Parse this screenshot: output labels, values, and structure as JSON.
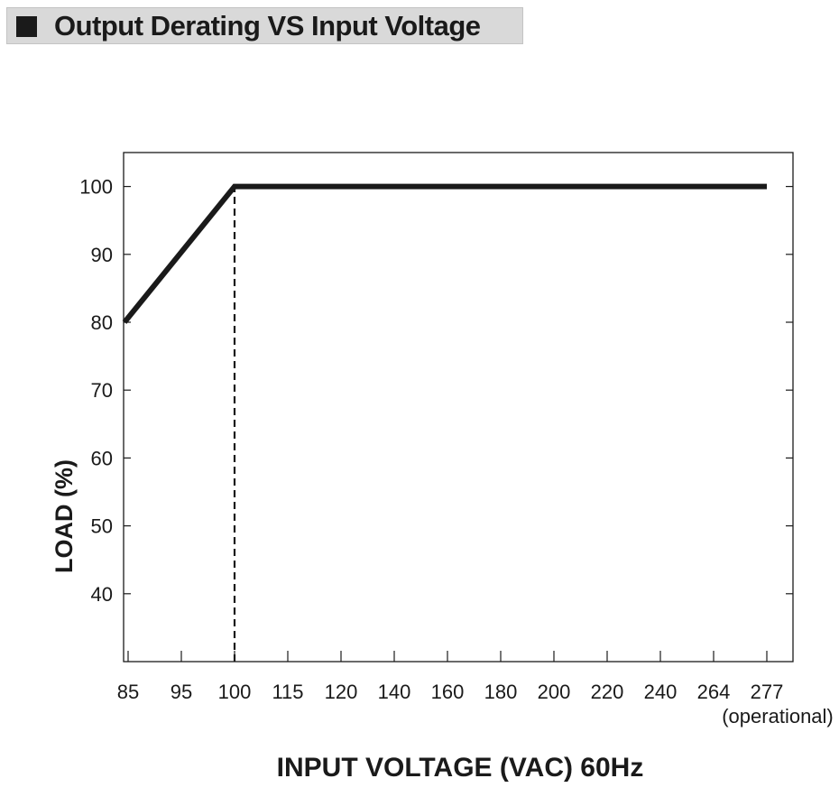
{
  "header": {
    "title": "Output Derating VS Input Voltage"
  },
  "chart_data": {
    "type": "line",
    "title": "Output Derating VS Input Voltage",
    "xlabel": "INPUT VOLTAGE (VAC) 60Hz",
    "ylabel": "LOAD (%)",
    "x_ticks": [
      "85",
      "95",
      "100",
      "115",
      "120",
      "140",
      "160",
      "180",
      "200",
      "220",
      "240",
      "264",
      "277"
    ],
    "x_tick_note": {
      "tick": "277",
      "text": "(operational)"
    },
    "y_ticks": [
      40,
      50,
      60,
      70,
      80,
      90,
      100
    ],
    "ylim": [
      30,
      105
    ],
    "grid": false,
    "series": [
      {
        "x": [
          "85",
          "100",
          "277"
        ],
        "y": [
          80,
          100,
          100
        ]
      }
    ],
    "reference_lines": [
      {
        "style": "dashed",
        "x": "100",
        "y_from": 30,
        "y_to": 100
      }
    ],
    "colors": {
      "line": "#1a1a1a",
      "axis": "#1a1a1a"
    }
  }
}
